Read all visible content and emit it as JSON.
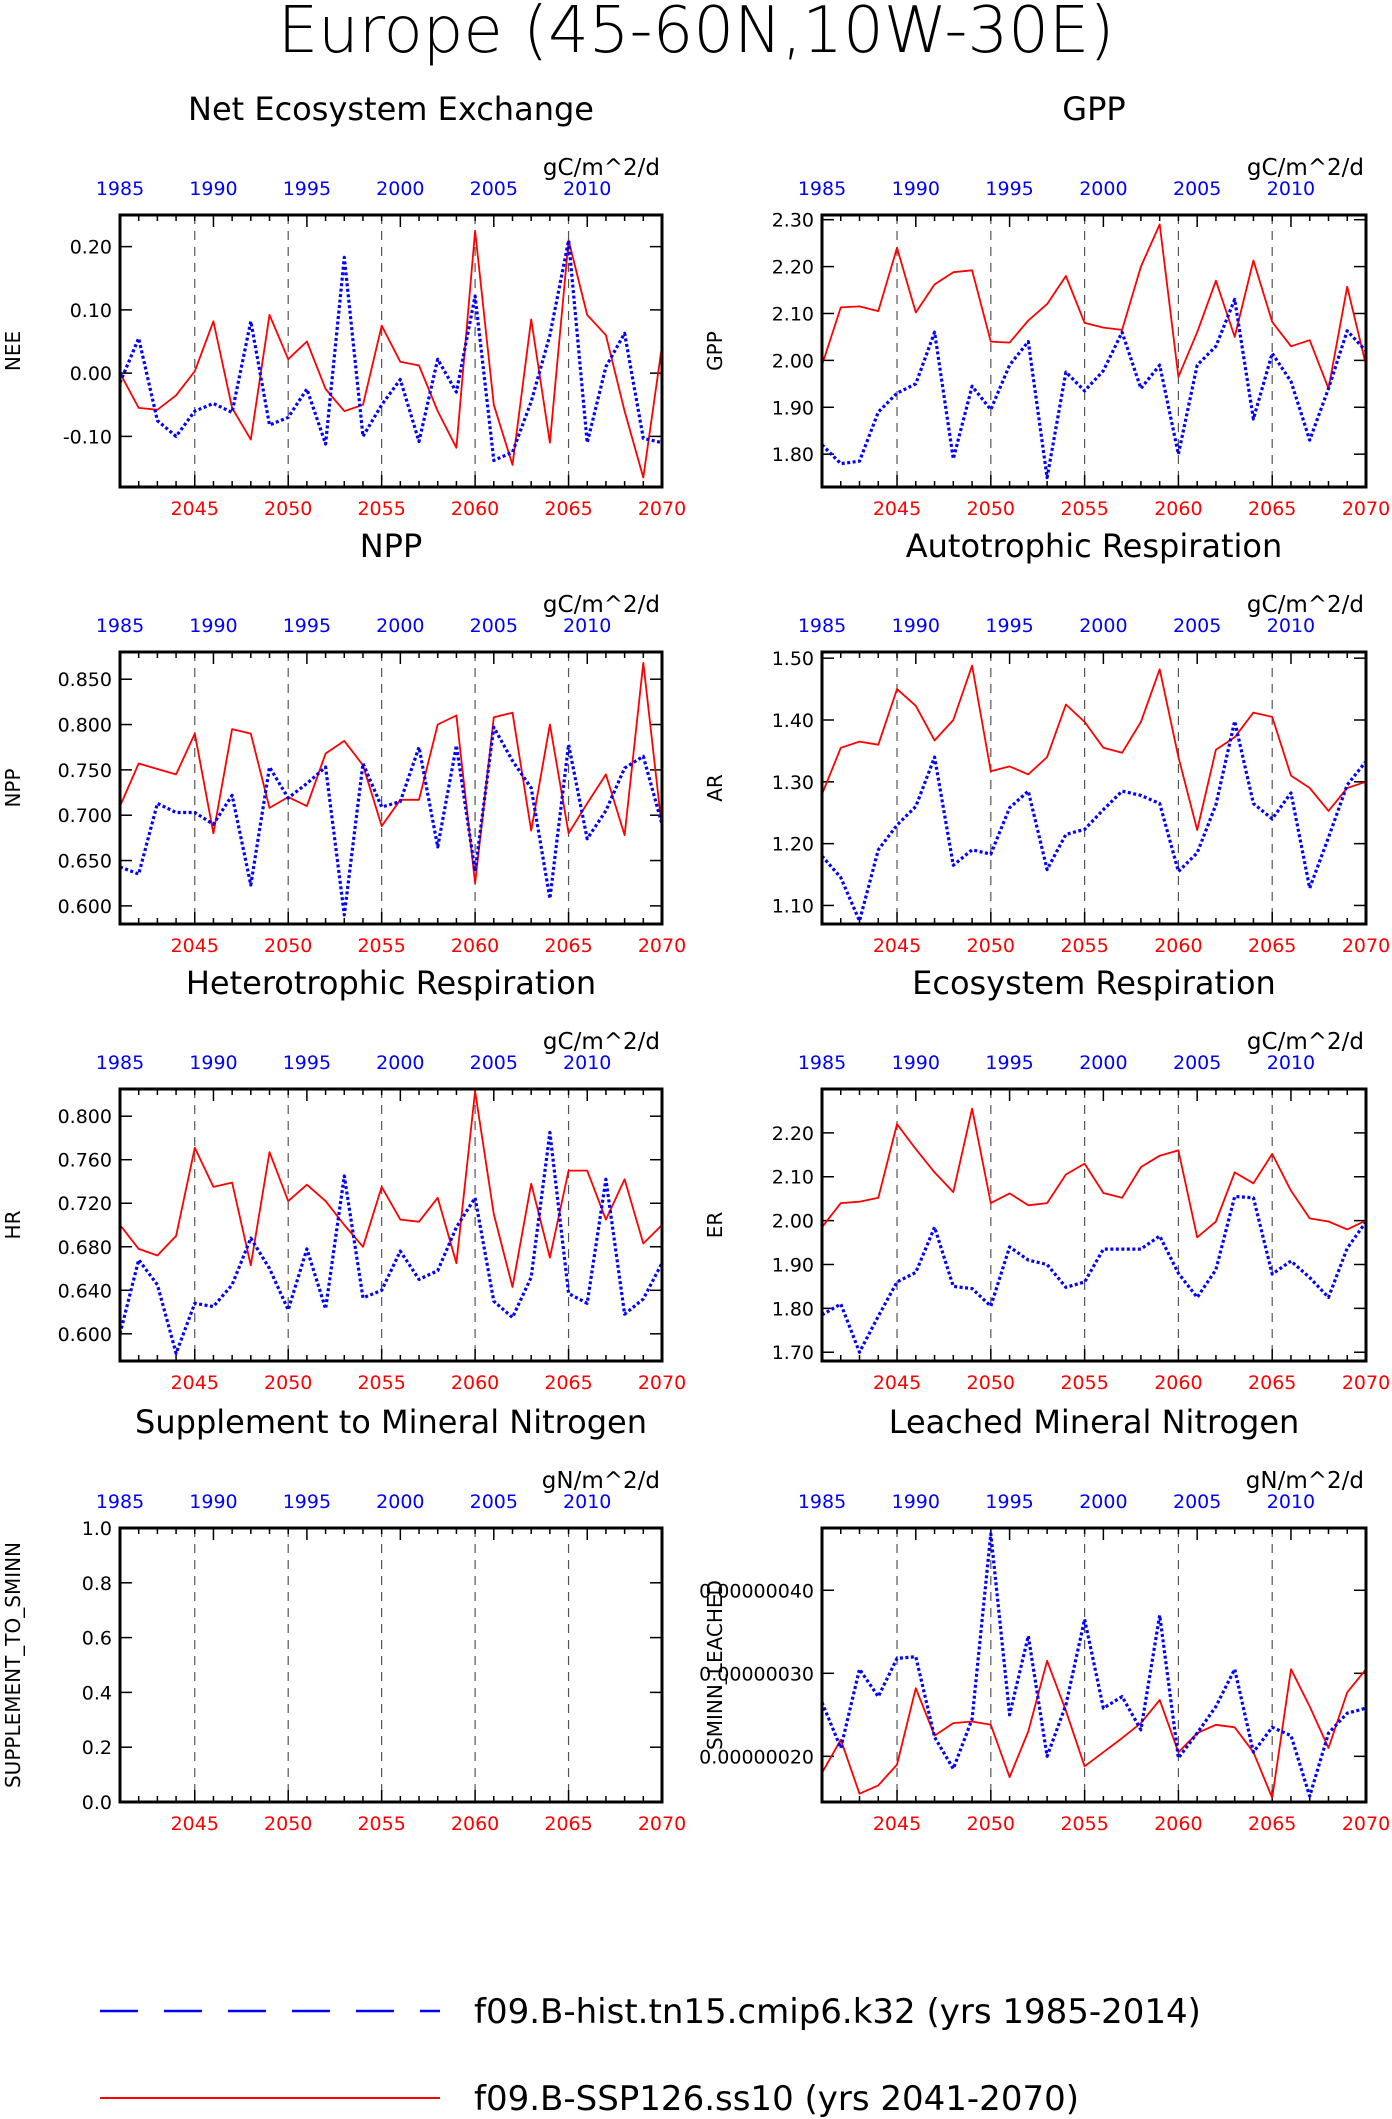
{
  "title": "Europe (45-60N,10W-30E)",
  "colors": {
    "hist": "#0000ff",
    "ssp": "#ff0000",
    "axis": "#000000",
    "vline": "#555555"
  },
  "legend": {
    "hist": "f09.B-hist.tn15.cmip6.k32 (yrs 1985-2014)",
    "ssp": "f09.B-SSP126.ss10 (yrs 2041-2070)"
  },
  "chart_data": [
    {
      "type": "line",
      "id": "nee",
      "title": "Net Ecosystem Exchange",
      "ylabel": "NEE",
      "units": "gC/m^2/d",
      "ylim": [
        -0.18,
        0.25
      ],
      "yticks": [
        -0.1,
        0.0,
        0.1,
        0.2
      ],
      "ytick_labels": [
        "-0.10",
        "0.00",
        "0.10",
        "0.20"
      ],
      "x_red": [
        2041,
        2070
      ],
      "x_blue": [
        1985,
        2014
      ],
      "xticks_red": [
        2045,
        2050,
        2055,
        2060,
        2065,
        2070
      ],
      "xticks_blue": [
        1985,
        1990,
        1995,
        2000,
        2005,
        2010
      ],
      "ssp_values": [
        0.0,
        -0.055,
        -0.058,
        -0.035,
        0.003,
        0.082,
        -0.055,
        -0.105,
        0.092,
        0.022,
        0.05,
        -0.025,
        -0.06,
        -0.05,
        0.075,
        0.018,
        0.012,
        -0.06,
        -0.118,
        0.225,
        -0.05,
        -0.145,
        0.085,
        -0.11,
        0.21,
        0.092,
        0.06,
        -0.06,
        -0.165,
        0.043
      ],
      "hist_values": [
        -0.015,
        0.055,
        -0.075,
        -0.1,
        -0.06,
        -0.048,
        -0.062,
        0.082,
        -0.082,
        -0.07,
        -0.025,
        -0.112,
        0.183,
        -0.1,
        -0.05,
        -0.01,
        -0.108,
        0.022,
        -0.03,
        0.122,
        -0.138,
        -0.125,
        -0.045,
        0.06,
        0.21,
        -0.11,
        0.01,
        0.063,
        -0.103,
        -0.11
      ]
    },
    {
      "type": "line",
      "id": "gpp",
      "title": "GPP",
      "ylabel": "GPP",
      "units": "gC/m^2/d",
      "ylim": [
        1.73,
        2.31
      ],
      "yticks": [
        1.8,
        1.9,
        2.0,
        2.1,
        2.2,
        2.3
      ],
      "ytick_labels": [
        "1.80",
        "1.90",
        "2.00",
        "2.10",
        "2.20",
        "2.30"
      ],
      "x_red": [
        2041,
        2070
      ],
      "x_blue": [
        1985,
        2014
      ],
      "xticks_red": [
        2045,
        2050,
        2055,
        2060,
        2065,
        2070
      ],
      "xticks_blue": [
        1985,
        1990,
        1995,
        2000,
        2005,
        2010
      ],
      "ssp_values": [
        1.99,
        2.113,
        2.115,
        2.105,
        2.24,
        2.102,
        2.162,
        2.188,
        2.192,
        2.04,
        2.038,
        2.085,
        2.12,
        2.18,
        2.08,
        2.07,
        2.065,
        2.2,
        2.29,
        1.965,
        2.06,
        2.17,
        2.05,
        2.213,
        2.082,
        2.03,
        2.043,
        1.94,
        2.157,
        1.99
      ],
      "hist_values": [
        1.82,
        1.78,
        1.785,
        1.89,
        1.93,
        1.95,
        2.06,
        1.79,
        1.945,
        1.895,
        1.99,
        2.04,
        1.75,
        1.975,
        1.935,
        1.978,
        2.06,
        1.94,
        1.99,
        1.8,
        1.99,
        2.03,
        2.13,
        1.875,
        2.015,
        1.955,
        1.83,
        1.94,
        2.063,
        2.02
      ]
    },
    {
      "type": "line",
      "id": "npp",
      "title": "NPP",
      "ylabel": "NPP",
      "units": "gC/m^2/d",
      "ylim": [
        0.58,
        0.88
      ],
      "yticks": [
        0.6,
        0.65,
        0.7,
        0.75,
        0.8,
        0.85
      ],
      "ytick_labels": [
        "0.600",
        "0.650",
        "0.700",
        "0.750",
        "0.800",
        "0.850"
      ],
      "x_red": [
        2041,
        2070
      ],
      "x_blue": [
        1985,
        2014
      ],
      "xticks_red": [
        2045,
        2050,
        2055,
        2060,
        2065,
        2070
      ],
      "xticks_blue": [
        1985,
        1990,
        1995,
        2000,
        2005,
        2010
      ],
      "ssp_values": [
        0.71,
        0.757,
        0.751,
        0.745,
        0.79,
        0.68,
        0.795,
        0.79,
        0.708,
        0.72,
        0.71,
        0.768,
        0.782,
        0.755,
        0.688,
        0.717,
        0.717,
        0.8,
        0.81,
        0.625,
        0.808,
        0.813,
        0.683,
        0.8,
        0.68,
        0.713,
        0.745,
        0.678,
        0.868,
        0.685
      ],
      "hist_values": [
        0.643,
        0.635,
        0.713,
        0.703,
        0.703,
        0.69,
        0.722,
        0.623,
        0.753,
        0.719,
        0.735,
        0.753,
        0.59,
        0.757,
        0.709,
        0.715,
        0.775,
        0.665,
        0.777,
        0.638,
        0.797,
        0.76,
        0.73,
        0.608,
        0.778,
        0.674,
        0.705,
        0.752,
        0.765,
        0.69
      ]
    },
    {
      "type": "line",
      "id": "ar",
      "title": "Autotrophic Respiration",
      "ylabel": "AR",
      "units": "gC/m^2/d",
      "ylim": [
        1.07,
        1.51
      ],
      "yticks": [
        1.1,
        1.2,
        1.3,
        1.4,
        1.5
      ],
      "ytick_labels": [
        "1.10",
        "1.20",
        "1.30",
        "1.40",
        "1.50"
      ],
      "x_red": [
        2041,
        2070
      ],
      "x_blue": [
        1985,
        2014
      ],
      "xticks_red": [
        2045,
        2050,
        2055,
        2060,
        2065,
        2070
      ],
      "xticks_blue": [
        1985,
        1990,
        1995,
        2000,
        2005,
        2010
      ],
      "ssp_values": [
        1.28,
        1.355,
        1.365,
        1.36,
        1.45,
        1.423,
        1.367,
        1.4,
        1.488,
        1.317,
        1.325,
        1.312,
        1.34,
        1.425,
        1.397,
        1.355,
        1.347,
        1.397,
        1.482,
        1.34,
        1.222,
        1.352,
        1.372,
        1.412,
        1.405,
        1.31,
        1.29,
        1.253,
        1.29,
        1.3
      ],
      "hist_values": [
        1.18,
        1.145,
        1.075,
        1.19,
        1.23,
        1.26,
        1.34,
        1.165,
        1.19,
        1.183,
        1.258,
        1.285,
        1.158,
        1.215,
        1.223,
        1.255,
        1.285,
        1.278,
        1.265,
        1.155,
        1.185,
        1.263,
        1.398,
        1.265,
        1.24,
        1.282,
        1.128,
        1.21,
        1.295,
        1.333
      ]
    },
    {
      "type": "line",
      "id": "hr",
      "title": "Heterotrophic Respiration",
      "ylabel": "HR",
      "units": "gC/m^2/d",
      "ylim": [
        0.575,
        0.825
      ],
      "yticks": [
        0.6,
        0.64,
        0.68,
        0.72,
        0.76,
        0.8
      ],
      "ytick_labels": [
        "0.600",
        "0.640",
        "0.680",
        "0.720",
        "0.760",
        "0.800"
      ],
      "x_red": [
        2041,
        2070
      ],
      "x_blue": [
        1985,
        2014
      ],
      "xticks_red": [
        2045,
        2050,
        2055,
        2060,
        2065,
        2070
      ],
      "xticks_blue": [
        1985,
        1990,
        1995,
        2000,
        2005,
        2010
      ],
      "ssp_values": [
        0.7,
        0.678,
        0.672,
        0.69,
        0.771,
        0.735,
        0.739,
        0.663,
        0.767,
        0.722,
        0.737,
        0.722,
        0.7,
        0.68,
        0.735,
        0.705,
        0.703,
        0.725,
        0.665,
        0.823,
        0.71,
        0.643,
        0.738,
        0.67,
        0.75,
        0.75,
        0.705,
        0.742,
        0.683,
        0.7
      ],
      "hist_values": [
        0.6,
        0.668,
        0.645,
        0.582,
        0.628,
        0.625,
        0.645,
        0.688,
        0.66,
        0.622,
        0.678,
        0.623,
        0.745,
        0.633,
        0.64,
        0.676,
        0.65,
        0.658,
        0.698,
        0.725,
        0.63,
        0.615,
        0.652,
        0.785,
        0.637,
        0.628,
        0.742,
        0.618,
        0.632,
        0.665
      ]
    },
    {
      "type": "line",
      "id": "er",
      "title": "Ecosystem Respiration",
      "ylabel": "ER",
      "units": "gC/m^2/d",
      "ylim": [
        1.68,
        2.3
      ],
      "yticks": [
        1.7,
        1.8,
        1.9,
        2.0,
        2.1,
        2.2
      ],
      "ytick_labels": [
        "1.70",
        "1.80",
        "1.90",
        "2.00",
        "2.10",
        "2.20"
      ],
      "x_red": [
        2041,
        2070
      ],
      "x_blue": [
        1985,
        2014
      ],
      "xticks_red": [
        2045,
        2050,
        2055,
        2060,
        2065,
        2070
      ],
      "xticks_blue": [
        1985,
        1990,
        1995,
        2000,
        2005,
        2010
      ],
      "ssp_values": [
        1.985,
        2.04,
        2.043,
        2.052,
        2.22,
        2.163,
        2.11,
        2.065,
        2.255,
        2.04,
        2.062,
        2.035,
        2.04,
        2.105,
        2.13,
        2.063,
        2.052,
        2.122,
        2.148,
        2.16,
        1.962,
        1.998,
        2.11,
        2.085,
        2.152,
        2.068,
        2.005,
        1.998,
        1.98,
        2.0
      ],
      "hist_values": [
        1.785,
        1.81,
        1.7,
        1.782,
        1.86,
        1.882,
        1.985,
        1.85,
        1.845,
        1.805,
        1.94,
        1.91,
        1.9,
        1.848,
        1.86,
        1.935,
        1.935,
        1.935,
        1.965,
        1.88,
        1.825,
        1.888,
        2.055,
        2.052,
        1.878,
        1.908,
        1.87,
        1.825,
        1.937,
        1.997
      ]
    },
    {
      "type": "line",
      "id": "supp",
      "title": "Supplement to Mineral Nitrogen",
      "ylabel": "SUPPLEMENT_TO_SMINN",
      "units": "gN/m^2/d",
      "ylim": [
        0.0,
        1.0
      ],
      "yticks": [
        0.0,
        0.2,
        0.4,
        0.6,
        0.8,
        1.0
      ],
      "ytick_labels": [
        "0.0",
        "0.2",
        "0.4",
        "0.6",
        "0.8",
        "1.0"
      ],
      "x_red": [
        2041,
        2070
      ],
      "x_blue": [
        1985,
        2014
      ],
      "xticks_red": [
        2045,
        2050,
        2055,
        2060,
        2065,
        2070
      ],
      "xticks_blue": [
        1985,
        1990,
        1995,
        2000,
        2005,
        2010
      ],
      "ssp_values": [],
      "hist_values": []
    },
    {
      "type": "line",
      "id": "leached",
      "title": "Leached Mineral Nitrogen",
      "ylabel": "SMINN_LEACHED",
      "units": "gN/m^2/d",
      "ylim": [
        1.45e-07,
        4.75e-07
      ],
      "yticks": [
        2e-07,
        3e-07,
        4e-07
      ],
      "ytick_labels": [
        "0.00000020",
        "0.00000030",
        "0.00000040"
      ],
      "x_red": [
        2041,
        2070
      ],
      "x_blue": [
        1985,
        2014
      ],
      "xticks_red": [
        2045,
        2050,
        2055,
        2060,
        2065,
        2070
      ],
      "xticks_blue": [
        1985,
        1990,
        1995,
        2000,
        2005,
        2010
      ],
      "ssp_values": [
        1.8e-07,
        2.2e-07,
        1.55e-07,
        1.65e-07,
        1.9e-07,
        2.82e-07,
        2.25e-07,
        2.4e-07,
        2.42e-07,
        2.38e-07,
        1.75e-07,
        2.3e-07,
        3.15e-07,
        2.55e-07,
        1.88e-07,
        2.05e-07,
        2.22e-07,
        2.4e-07,
        2.68e-07,
        2.05e-07,
        2.28e-07,
        2.38e-07,
        2.35e-07,
        2.05e-07,
        1.5e-07,
        3.05e-07,
        2.6e-07,
        2.1e-07,
        2.77e-07,
        3.05e-07
      ],
      "hist_values": [
        2.65e-07,
        2.1e-07,
        3.05e-07,
        2.72e-07,
        3.18e-07,
        3.2e-07,
        2.23e-07,
        1.85e-07,
        2.45e-07,
        4.68e-07,
        2.5e-07,
        3.45e-07,
        2e-07,
        2.62e-07,
        3.65e-07,
        2.58e-07,
        2.72e-07,
        2.32e-07,
        3.7e-07,
        1.98e-07,
        2.28e-07,
        2.6e-07,
        3.05e-07,
        2.05e-07,
        2.35e-07,
        2.25e-07,
        1.52e-07,
        2.28e-07,
        2.52e-07,
        2.58e-07
      ]
    }
  ]
}
